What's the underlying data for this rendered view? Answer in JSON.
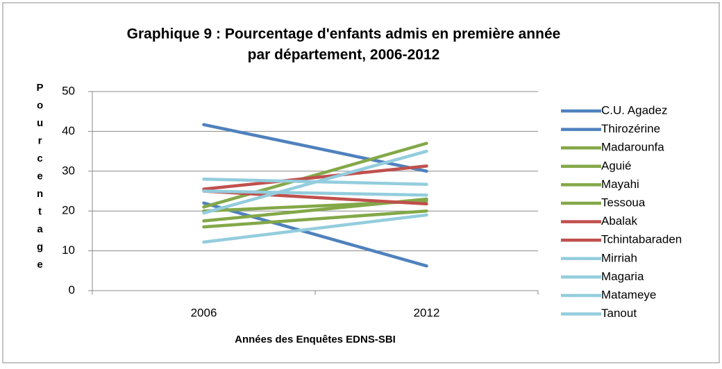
{
  "chart_data": {
    "type": "line",
    "title": [
      "Graphique 9  : Pourcentage d'enfants admis en première année",
      "par département, 2006-2012"
    ],
    "xlabel": "Années des Enquêtes  EDNS-SBI",
    "ylabel": "Pourcentage",
    "categories": [
      "2006",
      "2012"
    ],
    "ylim": [
      0,
      50
    ],
    "yticks": [
      0,
      10,
      20,
      30,
      40,
      50
    ],
    "grid": true,
    "legend": "right",
    "series": [
      {
        "name": "C.U. Agadez",
        "color": "#4f81bd",
        "values": [
          41.7,
          30
        ]
      },
      {
        "name": "Thirozérine",
        "color": "#4f81bd",
        "values": [
          22,
          6.2
        ]
      },
      {
        "name": "Madarounfa",
        "color": "#83a848",
        "values": [
          21,
          37
        ]
      },
      {
        "name": "Aguié",
        "color": "#83a848",
        "values": [
          17.5,
          23
        ]
      },
      {
        "name": "Mayahi",
        "color": "#83a848",
        "values": [
          16,
          20
        ]
      },
      {
        "name": "Tessoua",
        "color": "#83a848",
        "values": [
          20,
          22.5
        ]
      },
      {
        "name": "Abalak",
        "color": "#c0504d",
        "values": [
          25.5,
          31.3
        ]
      },
      {
        "name": "Tchintabaraden",
        "color": "#c0504d",
        "values": [
          25,
          21.8
        ]
      },
      {
        "name": "Mirriah",
        "color": "#93cddd",
        "values": [
          28,
          26.7
        ]
      },
      {
        "name": "Magaria",
        "color": "#93cddd",
        "values": [
          12.2,
          19
        ]
      },
      {
        "name": "Matameye",
        "color": "#93cddd",
        "values": [
          19.5,
          35
        ]
      },
      {
        "name": "Tanout",
        "color": "#93cddd",
        "values": [
          25,
          24
        ]
      }
    ]
  }
}
